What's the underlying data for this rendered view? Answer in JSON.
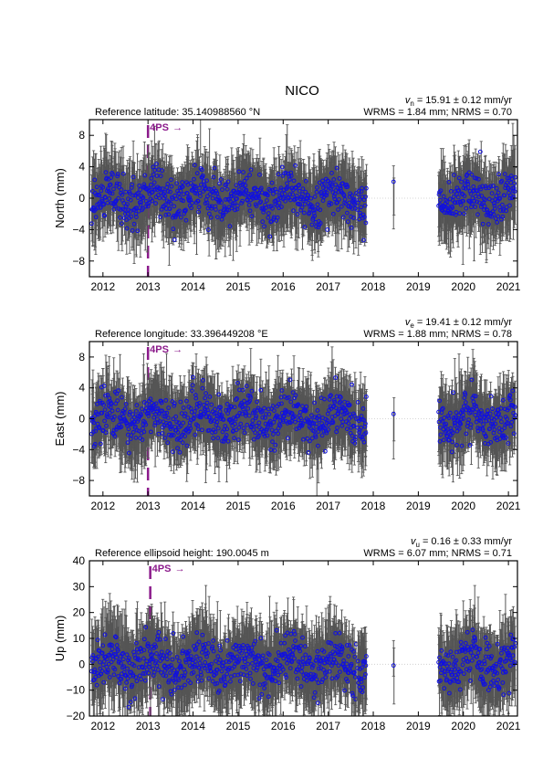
{
  "title": "NICO",
  "colors": {
    "points": "#1010e0",
    "errorbars": "#555555",
    "event": "#8b1a8b",
    "zero": "#c8c8c8"
  },
  "event_label": "4PS",
  "event_arrow": "→",
  "chart_data": [
    {
      "type": "scatter",
      "name": "north",
      "ylabel": "North (mm)",
      "ref_text": "Reference latitude: 35.140988560 °N",
      "vel_sym": "v",
      "vel_sub": "n",
      "vel_text": " = 15.91 ± 0.12 mm/yr",
      "stats_text": "WRMS = 1.84 mm; NRMS = 0.70",
      "xlim": [
        2011.7,
        2021.2
      ],
      "ylim": [
        -10,
        10
      ],
      "yticks": [
        -8,
        -4,
        0,
        4,
        8
      ],
      "xticks": [
        2012,
        2013,
        2014,
        2015,
        2016,
        2017,
        2018,
        2019,
        2020,
        2021
      ],
      "event_x": 2013.0,
      "amplitude": 1.9,
      "error": 3.0,
      "segments": [
        [
          2011.75,
          2017.62
        ],
        [
          2017.65,
          2017.85
        ],
        [
          2018.45,
          2018.46
        ],
        [
          2019.45,
          2021.15
        ]
      ]
    },
    {
      "type": "scatter",
      "name": "east",
      "ylabel": "East (mm)",
      "ref_text": "Reference longitude: 33.396449208 °E",
      "vel_sym": "v",
      "vel_sub": "e",
      "vel_text": " = 19.41 ± 0.12 mm/yr",
      "stats_text": "WRMS = 1.88 mm; NRMS = 0.78",
      "xlim": [
        2011.7,
        2021.2
      ],
      "ylim": [
        -10,
        10
      ],
      "yticks": [
        -8,
        -4,
        0,
        4,
        8
      ],
      "xticks": [
        2012,
        2013,
        2014,
        2015,
        2016,
        2017,
        2018,
        2019,
        2020,
        2021
      ],
      "event_x": 2013.0,
      "amplitude": 1.9,
      "error": 3.0,
      "segments": [
        [
          2011.75,
          2017.62
        ],
        [
          2017.65,
          2017.85
        ],
        [
          2018.45,
          2018.46
        ],
        [
          2019.45,
          2021.15
        ]
      ]
    },
    {
      "type": "scatter",
      "name": "up",
      "ylabel": "Up (mm)",
      "ref_text": "Reference ellipsoid height: 190.0045 m",
      "vel_sym": "v",
      "vel_sub": "u",
      "vel_text": " = 0.16 ± 0.33 mm/yr",
      "stats_text": "WRMS = 6.07 mm; NRMS = 0.71",
      "xlim": [
        2011.7,
        2021.2
      ],
      "ylim": [
        -20,
        40
      ],
      "yticks": [
        -20,
        -10,
        0,
        10,
        20,
        30,
        40
      ],
      "xticks": [
        2012,
        2013,
        2014,
        2015,
        2016,
        2017,
        2018,
        2019,
        2020,
        2021
      ],
      "event_x": 2013.05,
      "amplitude": 6.0,
      "error": 10.0,
      "segments": [
        [
          2011.75,
          2017.62
        ],
        [
          2017.65,
          2017.85
        ],
        [
          2018.45,
          2018.46
        ],
        [
          2019.45,
          2021.15
        ]
      ]
    }
  ]
}
